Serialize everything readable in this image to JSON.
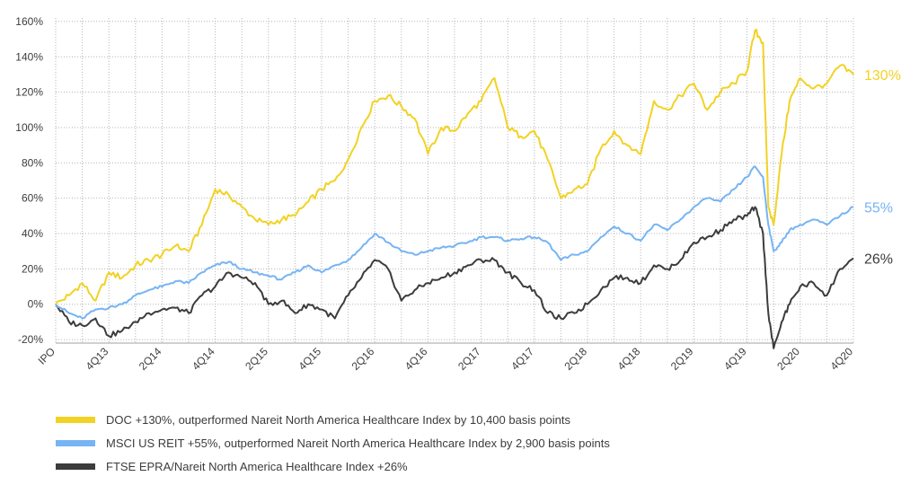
{
  "chart_data": {
    "type": "line",
    "title": "",
    "xlabel": "",
    "ylabel": "",
    "ylim": [
      -22,
      162
    ],
    "y_ticks": [
      -20,
      0,
      20,
      40,
      60,
      80,
      100,
      120,
      140,
      160
    ],
    "y_tick_labels": [
      "-20%",
      "0%",
      "20%",
      "40%",
      "60%",
      "80%",
      "100%",
      "120%",
      "140%",
      "160%"
    ],
    "x_range": [
      0,
      30
    ],
    "x_ticks": [
      0,
      1,
      2,
      3,
      4,
      5,
      6,
      7,
      8,
      9,
      10,
      11,
      12,
      13,
      14,
      15,
      16,
      17,
      18,
      19,
      20,
      21,
      22,
      23,
      24,
      25,
      26,
      27,
      28,
      29,
      30
    ],
    "x_tick_labels": [
      {
        "x": 0,
        "label": "IPO"
      },
      {
        "x": 2,
        "label": "4Q13"
      },
      {
        "x": 4,
        "label": "2Q14"
      },
      {
        "x": 6,
        "label": "4Q14"
      },
      {
        "x": 8,
        "label": "2Q15"
      },
      {
        "x": 10,
        "label": "4Q15"
      },
      {
        "x": 12,
        "label": "2Q16"
      },
      {
        "x": 14,
        "label": "4Q16"
      },
      {
        "x": 16,
        "label": "2Q17"
      },
      {
        "x": 18,
        "label": "4Q17"
      },
      {
        "x": 20,
        "label": "2Q18"
      },
      {
        "x": 22,
        "label": "4Q18"
      },
      {
        "x": 24,
        "label": "2Q19"
      },
      {
        "x": 26,
        "label": "4Q19"
      },
      {
        "x": 28,
        "label": "2Q20"
      },
      {
        "x": 30,
        "label": "4Q20"
      }
    ],
    "series": [
      {
        "name": "DOC",
        "legend": "DOC  +130%, outperformed Nareit North America Healthcare Index by 10,400 basis points",
        "color": "#f2d224",
        "end_label": "130%",
        "noise": 1.8,
        "x": [
          0,
          0.5,
          1,
          1.5,
          2,
          2.5,
          3,
          3.5,
          4,
          4.5,
          5,
          5.5,
          6,
          6.5,
          7,
          7.5,
          8,
          8.5,
          9,
          9.5,
          10,
          10.5,
          11,
          11.5,
          12,
          12.5,
          13,
          13.5,
          14,
          14.5,
          15,
          15.5,
          16,
          16.5,
          17,
          17.5,
          18,
          18.5,
          19,
          19.5,
          20,
          20.5,
          21,
          21.5,
          22,
          22.5,
          23,
          23.5,
          24,
          24.5,
          25,
          25.5,
          26,
          26.3,
          26.6,
          26.8,
          27,
          27.3,
          27.6,
          28,
          28.5,
          29,
          29.5,
          30
        ],
        "y": [
          0,
          5,
          12,
          2,
          18,
          15,
          22,
          25,
          28,
          33,
          30,
          45,
          65,
          62,
          55,
          48,
          45,
          48,
          50,
          58,
          65,
          70,
          82,
          100,
          115,
          118,
          112,
          105,
          85,
          100,
          98,
          108,
          115,
          128,
          100,
          95,
          98,
          82,
          60,
          65,
          68,
          88,
          98,
          90,
          85,
          115,
          110,
          118,
          125,
          110,
          120,
          125,
          132,
          155,
          148,
          55,
          45,
          85,
          115,
          128,
          122,
          125,
          135,
          130
        ]
      },
      {
        "name": "MSCI US REIT",
        "legend": "MSCI US REIT  +55%, outperformed Nareit North America Healthcare Index by 2,900 basis points",
        "color": "#76b4f4",
        "end_label": "55%",
        "noise": 0.8,
        "x": [
          0,
          0.5,
          1,
          1.5,
          2,
          2.5,
          3,
          3.5,
          4,
          4.5,
          5,
          5.5,
          6,
          6.5,
          7,
          7.5,
          8,
          8.5,
          9,
          9.5,
          10,
          10.5,
          11,
          11.5,
          12,
          12.5,
          13,
          13.5,
          14,
          14.5,
          15,
          15.5,
          16,
          16.5,
          17,
          17.5,
          18,
          18.5,
          19,
          19.5,
          20,
          20.5,
          21,
          21.5,
          22,
          22.5,
          23,
          23.5,
          24,
          24.5,
          25,
          25.5,
          26,
          26.3,
          26.6,
          26.8,
          27,
          27.3,
          27.6,
          28,
          28.5,
          29,
          29.5,
          30
        ],
        "y": [
          0,
          -5,
          -8,
          -3,
          -2,
          0,
          5,
          8,
          10,
          13,
          12,
          18,
          22,
          24,
          20,
          18,
          16,
          14,
          18,
          22,
          18,
          22,
          25,
          32,
          40,
          35,
          30,
          28,
          30,
          32,
          33,
          35,
          38,
          38,
          36,
          37,
          38,
          35,
          25,
          28,
          30,
          38,
          44,
          40,
          36,
          45,
          42,
          48,
          55,
          60,
          58,
          65,
          72,
          78,
          72,
          45,
          30,
          35,
          42,
          45,
          48,
          45,
          50,
          55
        ]
      },
      {
        "name": "FTSE EPRA/Nareit North America Healthcare Index",
        "legend": "FTSE EPRA/Nareit North America Healthcare Index  +26%",
        "color": "#3c3c3c",
        "end_label": "26%",
        "noise": 1.5,
        "x": [
          0,
          0.5,
          1,
          1.5,
          2,
          2.5,
          3,
          3.5,
          4,
          4.5,
          5,
          5.5,
          6,
          6.5,
          7,
          7.5,
          8,
          8.5,
          9,
          9.5,
          10,
          10.5,
          11,
          11.5,
          12,
          12.5,
          13,
          13.5,
          14,
          14.5,
          15,
          15.5,
          16,
          16.5,
          17,
          17.5,
          18,
          18.5,
          19,
          19.5,
          20,
          20.5,
          21,
          21.5,
          22,
          22.5,
          23,
          23.5,
          24,
          24.5,
          25,
          25.5,
          26,
          26.3,
          26.6,
          26.8,
          27,
          27.3,
          27.6,
          28,
          28.5,
          29,
          29.5,
          30
        ],
        "y": [
          0,
          -10,
          -12,
          -8,
          -18,
          -15,
          -10,
          -5,
          -3,
          -2,
          -5,
          5,
          10,
          18,
          15,
          12,
          0,
          2,
          -5,
          0,
          -3,
          -8,
          5,
          15,
          25,
          20,
          2,
          8,
          12,
          15,
          18,
          22,
          25,
          25,
          18,
          12,
          8,
          -5,
          -8,
          -5,
          0,
          8,
          15,
          15,
          12,
          22,
          20,
          25,
          35,
          38,
          42,
          48,
          50,
          55,
          40,
          -5,
          -25,
          -10,
          0,
          10,
          12,
          5,
          20,
          26
        ]
      }
    ]
  }
}
